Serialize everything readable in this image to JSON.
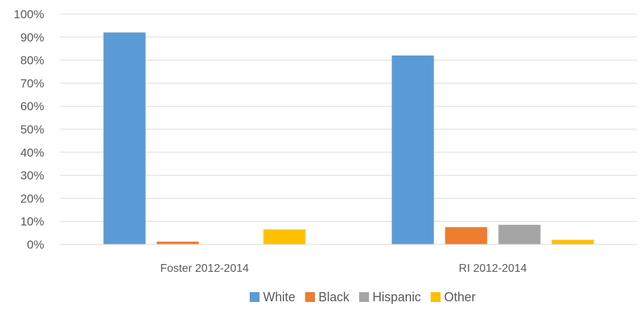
{
  "chart_data": {
    "type": "bar",
    "categories": [
      "Foster 2012-2014",
      "RI 2012-2014"
    ],
    "series": [
      {
        "name": "White",
        "values": [
          92,
          82
        ],
        "color": "#5b9bd5"
      },
      {
        "name": "Black",
        "values": [
          1.2,
          7.5
        ],
        "color": "#ed7d31"
      },
      {
        "name": "Hispanic",
        "values": [
          0,
          8.5
        ],
        "color": "#a5a5a5"
      },
      {
        "name": "Other",
        "values": [
          6.5,
          2
        ],
        "color": "#ffc000"
      }
    ],
    "y_ticks": [
      "0%",
      "10%",
      "20%",
      "30%",
      "40%",
      "50%",
      "60%",
      "70%",
      "80%",
      "90%",
      "100%"
    ],
    "ylim": [
      0,
      100
    ],
    "grid": true,
    "legend_position": "bottom"
  }
}
